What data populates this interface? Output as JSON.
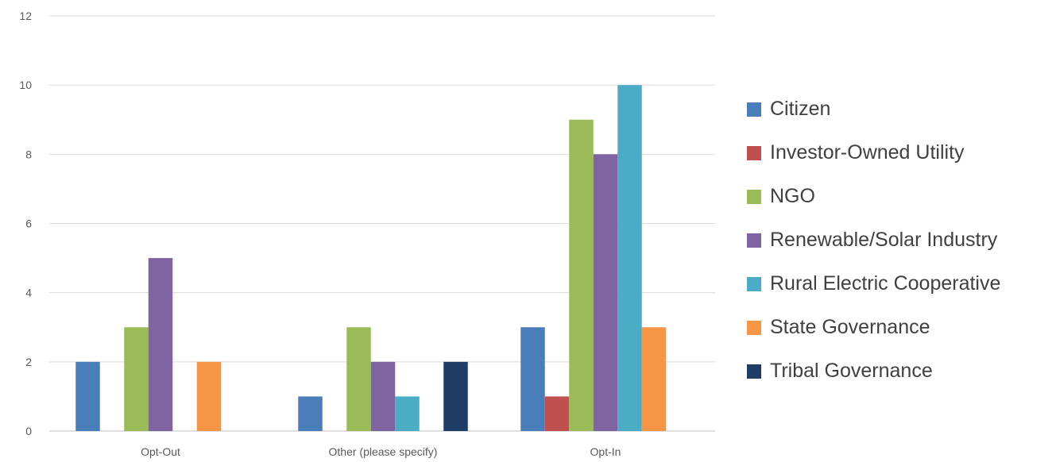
{
  "chart_data": {
    "type": "bar",
    "title": "",
    "xlabel": "",
    "ylabel": "",
    "categories": [
      "Opt-Out",
      "Other (please specify)",
      "Opt-In"
    ],
    "ylim": [
      0,
      12
    ],
    "yticks": [
      0,
      2,
      4,
      6,
      8,
      10,
      12
    ],
    "grid": true,
    "legend_position": "right",
    "series": [
      {
        "name": "Citizen",
        "color": "#4a7ebb",
        "values": [
          2,
          1,
          3
        ]
      },
      {
        "name": "Investor-Owned Utility",
        "color": "#c0504d",
        "values": [
          0,
          0,
          1
        ]
      },
      {
        "name": "NGO",
        "color": "#9bbb59",
        "values": [
          3,
          3,
          9
        ]
      },
      {
        "name": "Renewable/Solar Industry",
        "color": "#8064a2",
        "values": [
          5,
          2,
          8
        ]
      },
      {
        "name": "Rural Electric Cooperative",
        "color": "#4bacc6",
        "values": [
          0,
          1,
          10
        ]
      },
      {
        "name": "State Governance",
        "color": "#f79646",
        "values": [
          2,
          0,
          3
        ]
      },
      {
        "name": "Tribal Governance",
        "color": "#1f3d66",
        "values": [
          0,
          2,
          0
        ]
      }
    ]
  }
}
